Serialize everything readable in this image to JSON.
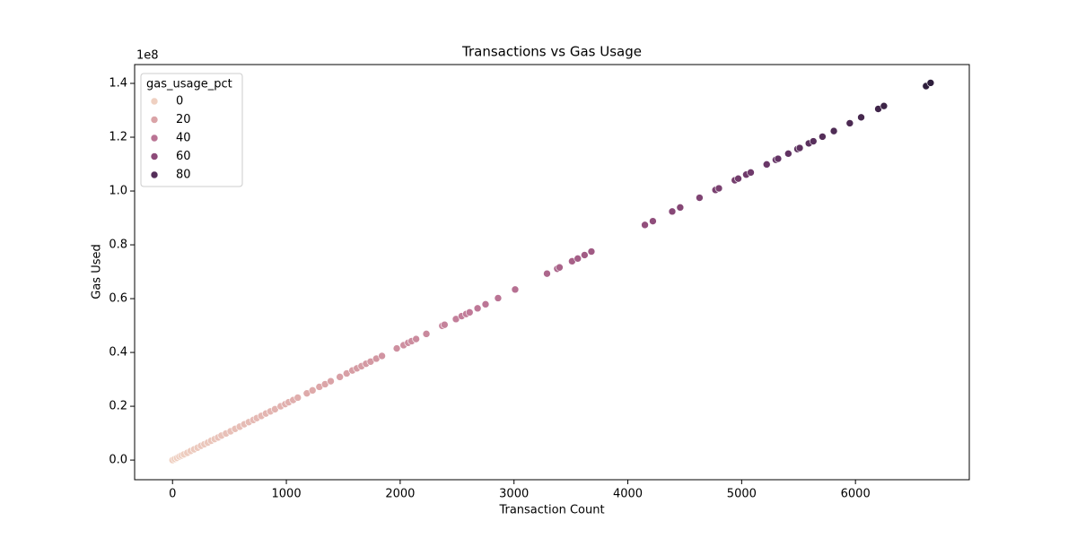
{
  "chart_data": {
    "type": "scatter",
    "title": "Transactions vs Gas Usage",
    "x_label": "Transaction Count",
    "y_label": "Gas Used",
    "y_offset_label": "1e8",
    "x": [
      0,
      20,
      40,
      60,
      80,
      100,
      130,
      160,
      190,
      220,
      250,
      280,
      310,
      340,
      370,
      400,
      430,
      470,
      510,
      550,
      590,
      630,
      670,
      710,
      740,
      780,
      820,
      860,
      900,
      950,
      990,
      1020,
      1060,
      1100,
      1180,
      1230,
      1290,
      1340,
      1390,
      1470,
      1530,
      1580,
      1620,
      1660,
      1700,
      1740,
      1790,
      1840,
      1970,
      2030,
      2070,
      2100,
      2140,
      2230,
      2370,
      2390,
      2490,
      2540,
      2580,
      2610,
      2680,
      2750,
      2860,
      3010,
      3290,
      3380,
      3400,
      3510,
      3560,
      3620,
      3680,
      4150,
      4220,
      4390,
      4460,
      4630,
      4770,
      4800,
      4940,
      4970,
      5040,
      5080,
      5220,
      5300,
      5320,
      5410,
      5490,
      5510,
      5590,
      5630,
      5710,
      5810,
      5950,
      6050,
      6200,
      6250,
      6620,
      6660
    ],
    "y": [
      0,
      400000,
      800000,
      1300000,
      1700000,
      2100000,
      2700000,
      3400000,
      4000000,
      4600000,
      5300000,
      5900000,
      6500000,
      7200000,
      7800000,
      8400000,
      9100000,
      9900000,
      10700000,
      11600000,
      12400000,
      13300000,
      14100000,
      14900000,
      15600000,
      16400000,
      17300000,
      18100000,
      18900000,
      20000000,
      20800000,
      21500000,
      22300000,
      23200000,
      24800000,
      25900000,
      27200000,
      28200000,
      29300000,
      30900000,
      32200000,
      33300000,
      34100000,
      34900000,
      35800000,
      36600000,
      37700000,
      38700000,
      41500000,
      42700000,
      43600000,
      44200000,
      45000000,
      46900000,
      49900000,
      50300000,
      52400000,
      53500000,
      54300000,
      54900000,
      56400000,
      57900000,
      60200000,
      63400000,
      69300000,
      71100000,
      71600000,
      73900000,
      74900000,
      76200000,
      77500000,
      87400000,
      88800000,
      92400000,
      93900000,
      97500000,
      100400000,
      101000000,
      104000000,
      104600000,
      106100000,
      106900000,
      109900000,
      111600000,
      112000000,
      113900000,
      115600000,
      116000000,
      117700000,
      118500000,
      120200000,
      122300000,
      125200000,
      127400000,
      130500000,
      131600000,
      139000000,
      140200000
    ],
    "hue": [
      0,
      0,
      1,
      1,
      1,
      1,
      2,
      2,
      3,
      3,
      4,
      4,
      4,
      5,
      5,
      6,
      6,
      7,
      7,
      8,
      8,
      9,
      9,
      10,
      10,
      11,
      12,
      12,
      13,
      13,
      14,
      14,
      15,
      15,
      17,
      17,
      18,
      19,
      20,
      21,
      21,
      22,
      23,
      23,
      24,
      24,
      25,
      26,
      28,
      28,
      29,
      29,
      30,
      31,
      33,
      34,
      35,
      36,
      36,
      37,
      38,
      39,
      40,
      42,
      46,
      47,
      48,
      49,
      50,
      51,
      52,
      58,
      59,
      62,
      63,
      65,
      67,
      67,
      69,
      70,
      71,
      71,
      73,
      74,
      75,
      76,
      77,
      77,
      78,
      79,
      80,
      82,
      83,
      85,
      87,
      88,
      93,
      93
    ],
    "hue_name": "gas_usage_pct",
    "legend_values": [
      0,
      20,
      40,
      60,
      80
    ],
    "legend_position": "upper left",
    "palette": [
      "#efd0c1",
      "#dca6a8",
      "#c07a98",
      "#98527f",
      "#663566",
      "#2e1e3c"
    ],
    "xlim": [
      -333,
      7000
    ],
    "xticks": [
      0,
      1000,
      2000,
      3000,
      4000,
      5000,
      6000
    ],
    "ylim": [
      -7300000,
      147000000
    ],
    "yticks": [
      {
        "value": 0,
        "label": "0.0"
      },
      {
        "value": 20000000,
        "label": "0.2"
      },
      {
        "value": 40000000,
        "label": "0.4"
      },
      {
        "value": 60000000,
        "label": "0.6"
      },
      {
        "value": 80000000,
        "label": "0.8"
      },
      {
        "value": 100000000,
        "label": "1.0"
      },
      {
        "value": 120000000,
        "label": "1.2"
      },
      {
        "value": 140000000,
        "label": "1.4"
      }
    ]
  }
}
